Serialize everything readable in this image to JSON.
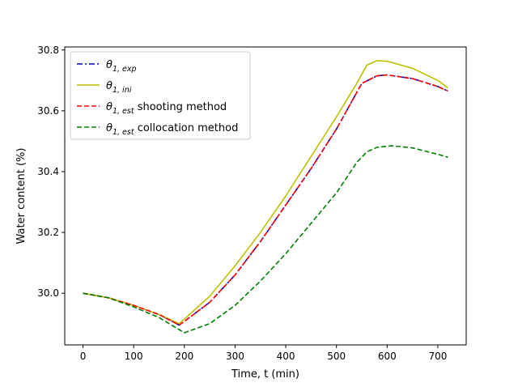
{
  "chart_data": {
    "type": "line",
    "title": "",
    "xlabel": "Time, t (min)",
    "ylabel": "Water content (%)",
    "xlim": [
      -36,
      756
    ],
    "ylim": [
      29.83,
      30.81
    ],
    "xticks": [
      0,
      100,
      200,
      300,
      400,
      500,
      600,
      700
    ],
    "yticks": [
      30.0,
      30.2,
      30.4,
      30.6,
      30.8
    ],
    "ytick_labels": [
      "30.0",
      "30.2",
      "30.4",
      "30.6",
      "30.8"
    ],
    "grid": false,
    "legend_position": "top-left",
    "series": [
      {
        "name": "θ1,exp",
        "legend_symbol": "θ",
        "legend_subscript": "1, exp",
        "color": "#0000bf",
        "style": "dashdot",
        "x": [
          0,
          50,
          100,
          150,
          190,
          250,
          300,
          350,
          400,
          450,
          500,
          530,
          550,
          580,
          600,
          650,
          700,
          720
        ],
        "y": [
          30.0,
          29.985,
          29.96,
          29.93,
          29.895,
          29.97,
          30.06,
          30.17,
          30.29,
          30.41,
          30.54,
          30.63,
          30.69,
          30.715,
          30.718,
          30.706,
          30.68,
          30.665
        ]
      },
      {
        "name": "θ1,ini",
        "legend_symbol": "θ",
        "legend_subscript": "1, ini",
        "color": "#bfbf00",
        "style": "solid",
        "x": [
          0,
          50,
          100,
          150,
          190,
          250,
          300,
          350,
          400,
          450,
          500,
          540,
          560,
          580,
          600,
          650,
          700,
          720
        ],
        "y": [
          30.0,
          29.985,
          29.96,
          29.93,
          29.9,
          29.99,
          30.09,
          30.2,
          30.32,
          30.45,
          30.58,
          30.69,
          30.75,
          30.765,
          30.763,
          30.74,
          30.7,
          30.675
        ]
      },
      {
        "name": "θ1,est shooting method",
        "legend_symbol": "θ",
        "legend_subscript": "1, est",
        "legend_suffix": " shooting method",
        "color": "#ff0000",
        "style": "dashed",
        "x": [
          0,
          50,
          100,
          150,
          190,
          250,
          300,
          350,
          400,
          450,
          500,
          530,
          550,
          580,
          600,
          650,
          700,
          720
        ],
        "y": [
          30.0,
          29.985,
          29.96,
          29.93,
          29.895,
          29.97,
          30.06,
          30.17,
          30.29,
          30.41,
          30.54,
          30.63,
          30.69,
          30.715,
          30.718,
          30.706,
          30.68,
          30.665
        ]
      },
      {
        "name": "θ1,est collocation method",
        "legend_symbol": "θ",
        "legend_subscript": "1, est",
        "legend_suffix": " collocation method",
        "color": "#008000",
        "style": "dashed",
        "x": [
          0,
          50,
          100,
          150,
          200,
          250,
          300,
          350,
          400,
          450,
          500,
          540,
          560,
          580,
          610,
          650,
          700,
          720
        ],
        "y": [
          30.0,
          29.985,
          29.955,
          29.92,
          29.87,
          29.9,
          29.96,
          30.04,
          30.13,
          30.23,
          30.33,
          30.43,
          30.465,
          30.48,
          30.485,
          30.478,
          30.457,
          30.447
        ]
      }
    ]
  }
}
